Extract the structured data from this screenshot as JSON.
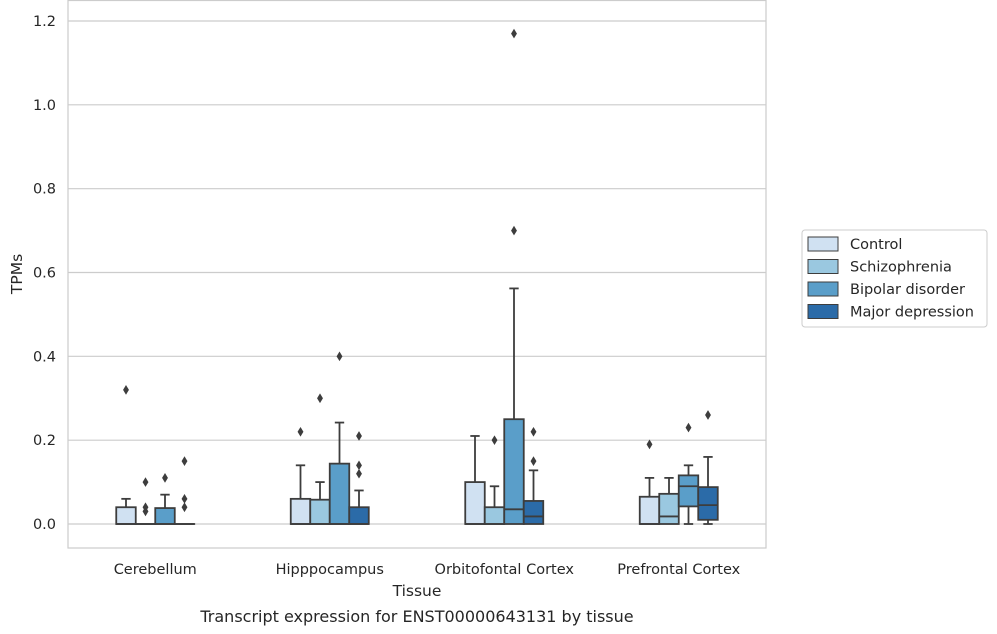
{
  "caption": "Transcript expression for ENST00000643131 by tissue",
  "chart_data": {
    "type": "boxplot",
    "xlabel": "Tissue",
    "ylabel": "TPMs",
    "ylim": [
      -0.058,
      1.232
    ],
    "yticks": [
      0.0,
      0.2,
      0.4,
      0.6,
      0.8,
      1.0,
      1.2
    ],
    "ytick_labels": [
      "0.0",
      "0.2",
      "0.4",
      "0.6",
      "0.8",
      "1.0",
      "1.2"
    ],
    "grid": "horizontal",
    "legend_position": "right",
    "categories": [
      "Cerebellum",
      "Hipppocampus",
      "Orbitofontal Cortex",
      "Prefrontal Cortex"
    ],
    "series": [
      {
        "name": "Control",
        "color": "#d0e1f2",
        "boxes": [
          {
            "whislo": 0.0,
            "q1": 0.0,
            "med": 0.0,
            "q3": 0.04,
            "whishi": 0.06,
            "fliers": [
              0.32
            ]
          },
          {
            "whislo": 0.0,
            "q1": 0.0,
            "med": 0.0,
            "q3": 0.06,
            "whishi": 0.14,
            "fliers": [
              0.22
            ]
          },
          {
            "whislo": 0.0,
            "q1": 0.0,
            "med": 0.0,
            "q3": 0.1,
            "whishi": 0.21,
            "fliers": []
          },
          {
            "whislo": 0.0,
            "q1": 0.0,
            "med": 0.0,
            "q3": 0.065,
            "whishi": 0.11,
            "fliers": [
              0.19
            ]
          }
        ]
      },
      {
        "name": "Schizophrenia",
        "color": "#9ac8e0",
        "boxes": [
          {
            "whislo": 0.0,
            "q1": 0.0,
            "med": 0.0,
            "q3": 0.0,
            "whishi": 0.0,
            "fliers": [
              0.03,
              0.04,
              0.1
            ]
          },
          {
            "whislo": 0.0,
            "q1": 0.0,
            "med": 0.0,
            "q3": 0.058,
            "whishi": 0.1,
            "fliers": [
              0.3
            ]
          },
          {
            "whislo": 0.0,
            "q1": 0.0,
            "med": 0.0,
            "q3": 0.04,
            "whishi": 0.09,
            "fliers": [
              0.2
            ]
          },
          {
            "whislo": 0.0,
            "q1": 0.0,
            "med": 0.018,
            "q3": 0.072,
            "whishi": 0.11,
            "fliers": []
          }
        ]
      },
      {
        "name": "Bipolar disorder",
        "color": "#5a9ec9",
        "boxes": [
          {
            "whislo": 0.0,
            "q1": 0.0,
            "med": 0.0,
            "q3": 0.038,
            "whishi": 0.07,
            "fliers": [
              0.11
            ]
          },
          {
            "whislo": 0.0,
            "q1": 0.0,
            "med": 0.0,
            "q3": 0.144,
            "whishi": 0.242,
            "fliers": [
              0.4
            ]
          },
          {
            "whislo": 0.0,
            "q1": 0.0,
            "med": 0.035,
            "q3": 0.25,
            "whishi": 0.562,
            "fliers": [
              0.7,
              1.17
            ]
          },
          {
            "whislo": 0.0,
            "q1": 0.042,
            "med": 0.09,
            "q3": 0.116,
            "whishi": 0.14,
            "fliers": [
              0.23
            ]
          }
        ]
      },
      {
        "name": "Major depression",
        "color": "#2b6ba8",
        "boxes": [
          {
            "whislo": 0.0,
            "q1": 0.0,
            "med": 0.0,
            "q3": 0.0,
            "whishi": 0.0,
            "fliers": [
              0.04,
              0.06,
              0.15
            ]
          },
          {
            "whislo": 0.0,
            "q1": 0.0,
            "med": 0.0,
            "q3": 0.04,
            "whishi": 0.08,
            "fliers": [
              0.12,
              0.14,
              0.21
            ]
          },
          {
            "whislo": 0.0,
            "q1": 0.0,
            "med": 0.018,
            "q3": 0.055,
            "whishi": 0.128,
            "fliers": [
              0.15,
              0.22
            ]
          },
          {
            "whislo": 0.0,
            "q1": 0.01,
            "med": 0.045,
            "q3": 0.088,
            "whishi": 0.16,
            "fliers": [
              0.26
            ]
          }
        ]
      }
    ]
  }
}
